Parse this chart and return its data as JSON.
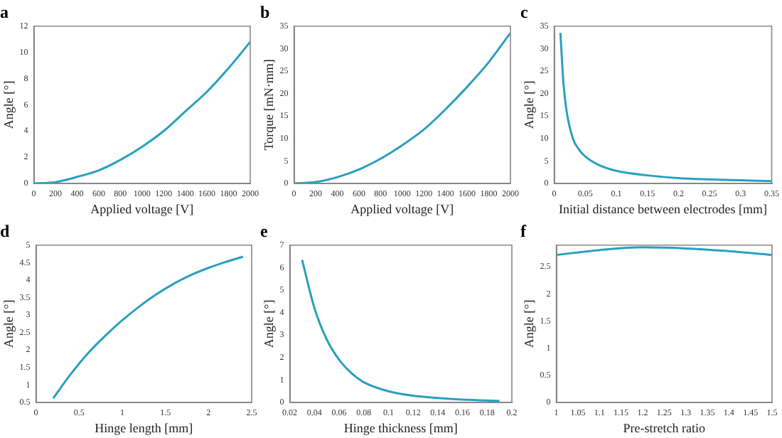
{
  "chart_data": [
    {
      "type": "line",
      "title": "a",
      "xlabel": "Applied voltage [V]",
      "ylabel": "Angle [°]",
      "xlim": [
        0,
        2000
      ],
      "ylim": [
        0,
        12
      ],
      "xticks": [
        0,
        200,
        400,
        600,
        800,
        1000,
        1200,
        1400,
        1600,
        1800,
        2000
      ],
      "yticks": [
        0,
        2,
        4,
        6,
        8,
        10,
        12
      ],
      "series": [
        {
          "color": "#2a9fc0",
          "x": [
            0,
            200,
            400,
            600,
            800,
            1000,
            1200,
            1400,
            1600,
            1800,
            2000
          ],
          "values": [
            0,
            0.1,
            0.5,
            1.0,
            1.8,
            2.8,
            4.0,
            5.5,
            7.0,
            8.8,
            10.8
          ]
        }
      ]
    },
    {
      "type": "line",
      "title": "b",
      "xlabel": "Applied voltage [V]",
      "ylabel": "Torque [mN·mm]",
      "xlim": [
        0,
        2000
      ],
      "ylim": [
        0,
        35
      ],
      "xticks": [
        0,
        200,
        400,
        600,
        800,
        1000,
        1200,
        1400,
        1600,
        1800,
        2000
      ],
      "yticks": [
        0,
        5,
        10,
        15,
        20,
        25,
        30,
        35
      ],
      "series": [
        {
          "color": "#2a9fc0",
          "x": [
            0,
            200,
            400,
            600,
            800,
            1000,
            1200,
            1400,
            1600,
            1800,
            2000
          ],
          "values": [
            0,
            0.3,
            1.4,
            3.1,
            5.5,
            8.5,
            12,
            16.5,
            21.5,
            27,
            33.5
          ]
        }
      ]
    },
    {
      "type": "line",
      "title": "c",
      "xlabel": "Initial distance between electrodes [mm]",
      "ylabel": "Angle [°]",
      "xlim": [
        0,
        0.35
      ],
      "ylim": [
        0,
        35
      ],
      "xticks": [
        0,
        0.05,
        0.1,
        0.15,
        0.2,
        0.25,
        0.3,
        0.35
      ],
      "yticks": [
        0,
        5,
        10,
        15,
        20,
        25,
        30,
        35
      ],
      "series": [
        {
          "color": "#2a9fc0",
          "x": [
            0.01,
            0.015,
            0.02,
            0.03,
            0.04,
            0.05,
            0.07,
            0.1,
            0.15,
            0.2,
            0.25,
            0.3,
            0.35
          ],
          "values": [
            33.5,
            22,
            16,
            10,
            7.5,
            6,
            4.2,
            2.8,
            1.8,
            1.2,
            0.9,
            0.7,
            0.5
          ]
        }
      ]
    },
    {
      "type": "line",
      "title": "d",
      "xlabel": "Hinge length [mm]",
      "ylabel": "Angle [°]",
      "xlim": [
        0,
        2.5
      ],
      "ylim": [
        0.5,
        5
      ],
      "xticks": [
        0,
        0.5,
        1,
        1.5,
        2,
        2.5
      ],
      "yticks": [
        0.5,
        1,
        1.5,
        2,
        2.5,
        3,
        3.5,
        4,
        4.5,
        5
      ],
      "series": [
        {
          "color": "#2a9fc0",
          "x": [
            0.2,
            0.4,
            0.6,
            0.8,
            1.0,
            1.2,
            1.4,
            1.6,
            1.8,
            2.0,
            2.2,
            2.4
          ],
          "values": [
            0.62,
            1.3,
            1.9,
            2.4,
            2.85,
            3.25,
            3.6,
            3.9,
            4.15,
            4.35,
            4.52,
            4.67
          ]
        }
      ]
    },
    {
      "type": "line",
      "title": "e",
      "xlabel": "Hinge thickness [mm]",
      "ylabel": "Angle [°]",
      "xlim": [
        0.02,
        0.2
      ],
      "ylim": [
        0,
        7
      ],
      "xticks": [
        0.02,
        0.04,
        0.06,
        0.08,
        0.1,
        0.12,
        0.14,
        0.16,
        0.18,
        0.2
      ],
      "yticks": [
        0,
        1,
        2,
        3,
        4,
        5,
        6,
        7
      ],
      "series": [
        {
          "color": "#2a9fc0",
          "x": [
            0.03,
            0.04,
            0.05,
            0.06,
            0.07,
            0.08,
            0.1,
            0.12,
            0.14,
            0.16,
            0.19
          ],
          "values": [
            6.35,
            4.2,
            2.8,
            1.9,
            1.3,
            0.9,
            0.5,
            0.3,
            0.2,
            0.13,
            0.07
          ]
        }
      ]
    },
    {
      "type": "line",
      "title": "f",
      "xlabel": "Pre-stretch ratio",
      "ylabel": "Angle [°]",
      "xlim": [
        1,
        1.5
      ],
      "ylim": [
        0,
        2.9
      ],
      "xticks": [
        1,
        1.05,
        1.1,
        1.15,
        1.2,
        1.25,
        1.3,
        1.35,
        1.4,
        1.45,
        1.5
      ],
      "yticks": [
        0,
        0.5,
        1,
        1.5,
        2,
        2.5
      ],
      "series": [
        {
          "color": "#2a9fc0",
          "x": [
            1,
            1.1,
            1.2,
            1.3,
            1.4,
            1.5
          ],
          "values": [
            2.72,
            2.81,
            2.86,
            2.84,
            2.79,
            2.72
          ]
        }
      ]
    }
  ]
}
